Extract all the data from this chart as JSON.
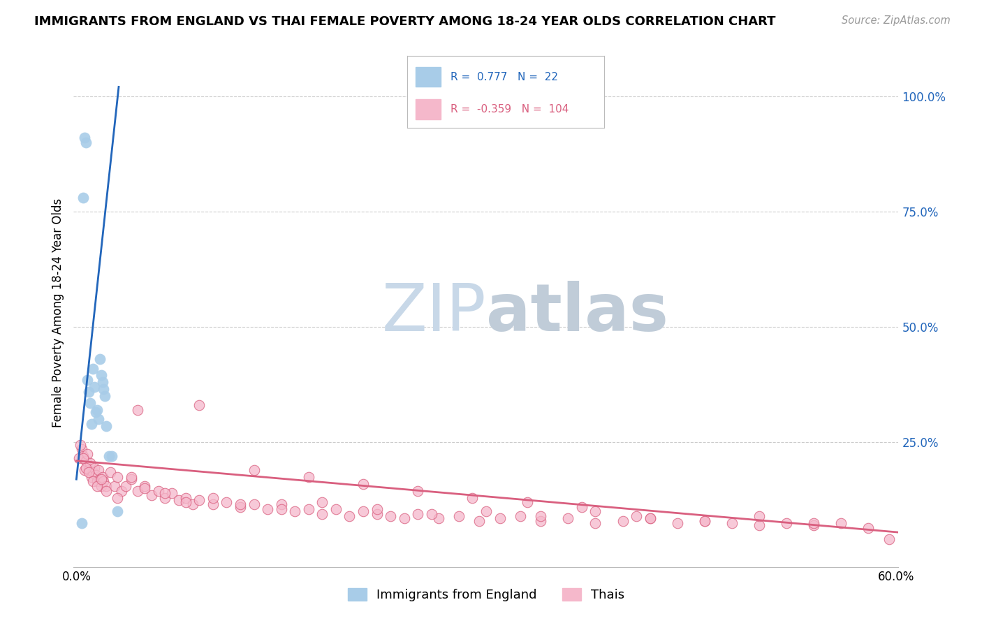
{
  "title": "IMMIGRANTS FROM ENGLAND VS THAI FEMALE POVERTY AMONG 18-24 YEAR OLDS CORRELATION CHART",
  "source": "Source: ZipAtlas.com",
  "ylabel": "Female Poverty Among 18-24 Year Olds",
  "legend_blue_R": "0.777",
  "legend_blue_N": "22",
  "legend_pink_R": "-0.359",
  "legend_pink_N": "104",
  "legend_label_blue": "Immigrants from England",
  "legend_label_pink": "Thais",
  "blue_color": "#a8cce8",
  "blue_line_color": "#2266bb",
  "pink_color": "#f5b8cb",
  "pink_line_color": "#d95f7f",
  "watermark_zip": "ZIP",
  "watermark_atlas": "atlas",
  "watermark_color": "#c8d8e8",
  "blue_scatter_x": [
    0.004,
    0.005,
    0.006,
    0.007,
    0.008,
    0.009,
    0.01,
    0.011,
    0.012,
    0.013,
    0.014,
    0.015,
    0.016,
    0.017,
    0.018,
    0.019,
    0.02,
    0.021,
    0.022,
    0.024,
    0.026,
    0.03
  ],
  "blue_scatter_y": [
    0.075,
    0.78,
    0.91,
    0.9,
    0.385,
    0.36,
    0.335,
    0.29,
    0.41,
    0.37,
    0.315,
    0.32,
    0.3,
    0.43,
    0.395,
    0.38,
    0.365,
    0.35,
    0.285,
    0.22,
    0.22,
    0.1
  ],
  "pink_scatter_x": [
    0.002,
    0.004,
    0.005,
    0.006,
    0.007,
    0.008,
    0.009,
    0.01,
    0.011,
    0.012,
    0.013,
    0.014,
    0.015,
    0.016,
    0.017,
    0.018,
    0.019,
    0.02,
    0.022,
    0.025,
    0.028,
    0.03,
    0.033,
    0.036,
    0.04,
    0.045,
    0.05,
    0.055,
    0.06,
    0.065,
    0.07,
    0.075,
    0.08,
    0.085,
    0.09,
    0.1,
    0.11,
    0.12,
    0.13,
    0.14,
    0.15,
    0.16,
    0.17,
    0.18,
    0.19,
    0.2,
    0.21,
    0.22,
    0.23,
    0.24,
    0.25,
    0.265,
    0.28,
    0.295,
    0.31,
    0.325,
    0.34,
    0.36,
    0.38,
    0.4,
    0.42,
    0.44,
    0.46,
    0.48,
    0.5,
    0.52,
    0.54,
    0.56,
    0.58,
    0.595,
    0.003,
    0.005,
    0.007,
    0.009,
    0.012,
    0.015,
    0.018,
    0.022,
    0.03,
    0.04,
    0.05,
    0.065,
    0.08,
    0.1,
    0.12,
    0.15,
    0.18,
    0.22,
    0.26,
    0.3,
    0.34,
    0.38,
    0.42,
    0.46,
    0.5,
    0.54,
    0.045,
    0.09,
    0.13,
    0.17,
    0.21,
    0.25,
    0.29,
    0.33,
    0.37,
    0.41
  ],
  "pink_scatter_y": [
    0.215,
    0.235,
    0.22,
    0.19,
    0.21,
    0.225,
    0.19,
    0.205,
    0.175,
    0.185,
    0.195,
    0.18,
    0.165,
    0.19,
    0.17,
    0.155,
    0.175,
    0.165,
    0.155,
    0.185,
    0.155,
    0.175,
    0.145,
    0.155,
    0.17,
    0.145,
    0.155,
    0.135,
    0.145,
    0.13,
    0.14,
    0.125,
    0.13,
    0.115,
    0.125,
    0.115,
    0.12,
    0.11,
    0.115,
    0.105,
    0.115,
    0.1,
    0.105,
    0.095,
    0.105,
    0.09,
    0.1,
    0.095,
    0.09,
    0.085,
    0.095,
    0.085,
    0.09,
    0.08,
    0.085,
    0.09,
    0.08,
    0.085,
    0.075,
    0.08,
    0.085,
    0.075,
    0.08,
    0.075,
    0.07,
    0.075,
    0.07,
    0.075,
    0.065,
    0.04,
    0.245,
    0.215,
    0.195,
    0.185,
    0.165,
    0.155,
    0.17,
    0.145,
    0.13,
    0.175,
    0.15,
    0.14,
    0.12,
    0.13,
    0.115,
    0.105,
    0.12,
    0.105,
    0.095,
    0.1,
    0.09,
    0.1,
    0.085,
    0.08,
    0.09,
    0.075,
    0.32,
    0.33,
    0.19,
    0.175,
    0.16,
    0.145,
    0.13,
    0.12,
    0.11,
    0.09
  ]
}
